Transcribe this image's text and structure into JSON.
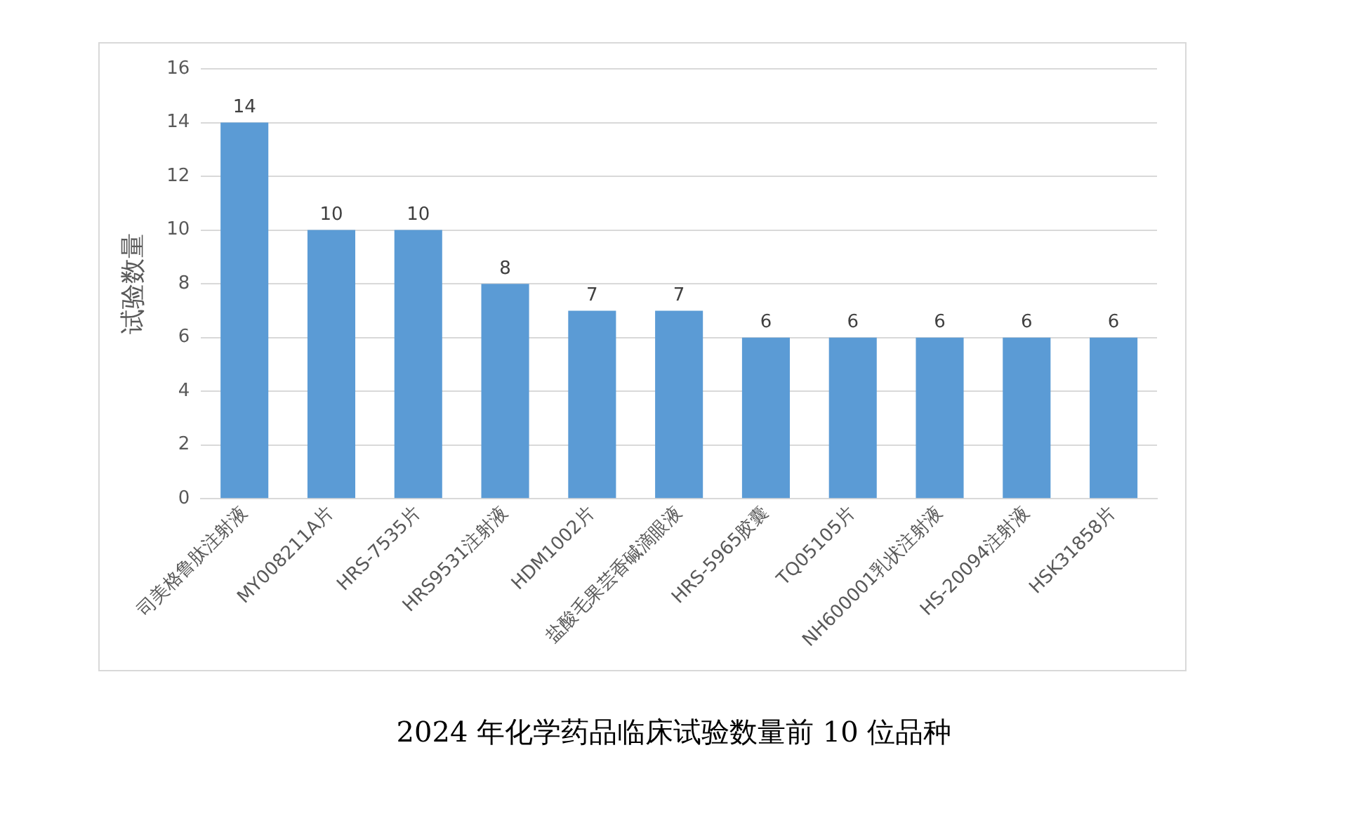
{
  "chart_data": {
    "type": "bar",
    "title": "2024 年化学药品临床试验数量前 10 位品种",
    "ylabel": "试验数量",
    "categories": [
      "司美格鲁肽注射液",
      "MY008211A片",
      "HRS-7535片",
      "HRS9531注射液",
      "HDM1002片",
      "盐酸毛果芸香碱滴眼液",
      "HRS-5965胶囊",
      "TQ05105片",
      "NH600001乳状注射液",
      "HS-20094注射液",
      "HSK31858片"
    ],
    "values": [
      14,
      10,
      10,
      8,
      7,
      7,
      6,
      6,
      6,
      6,
      6
    ],
    "color": "#5b9bd5",
    "ylim": [
      0,
      16
    ],
    "yticks": [
      0,
      2,
      4,
      6,
      8,
      10,
      12,
      14,
      16
    ],
    "grid": "y",
    "data_labels": true,
    "legend": false
  }
}
